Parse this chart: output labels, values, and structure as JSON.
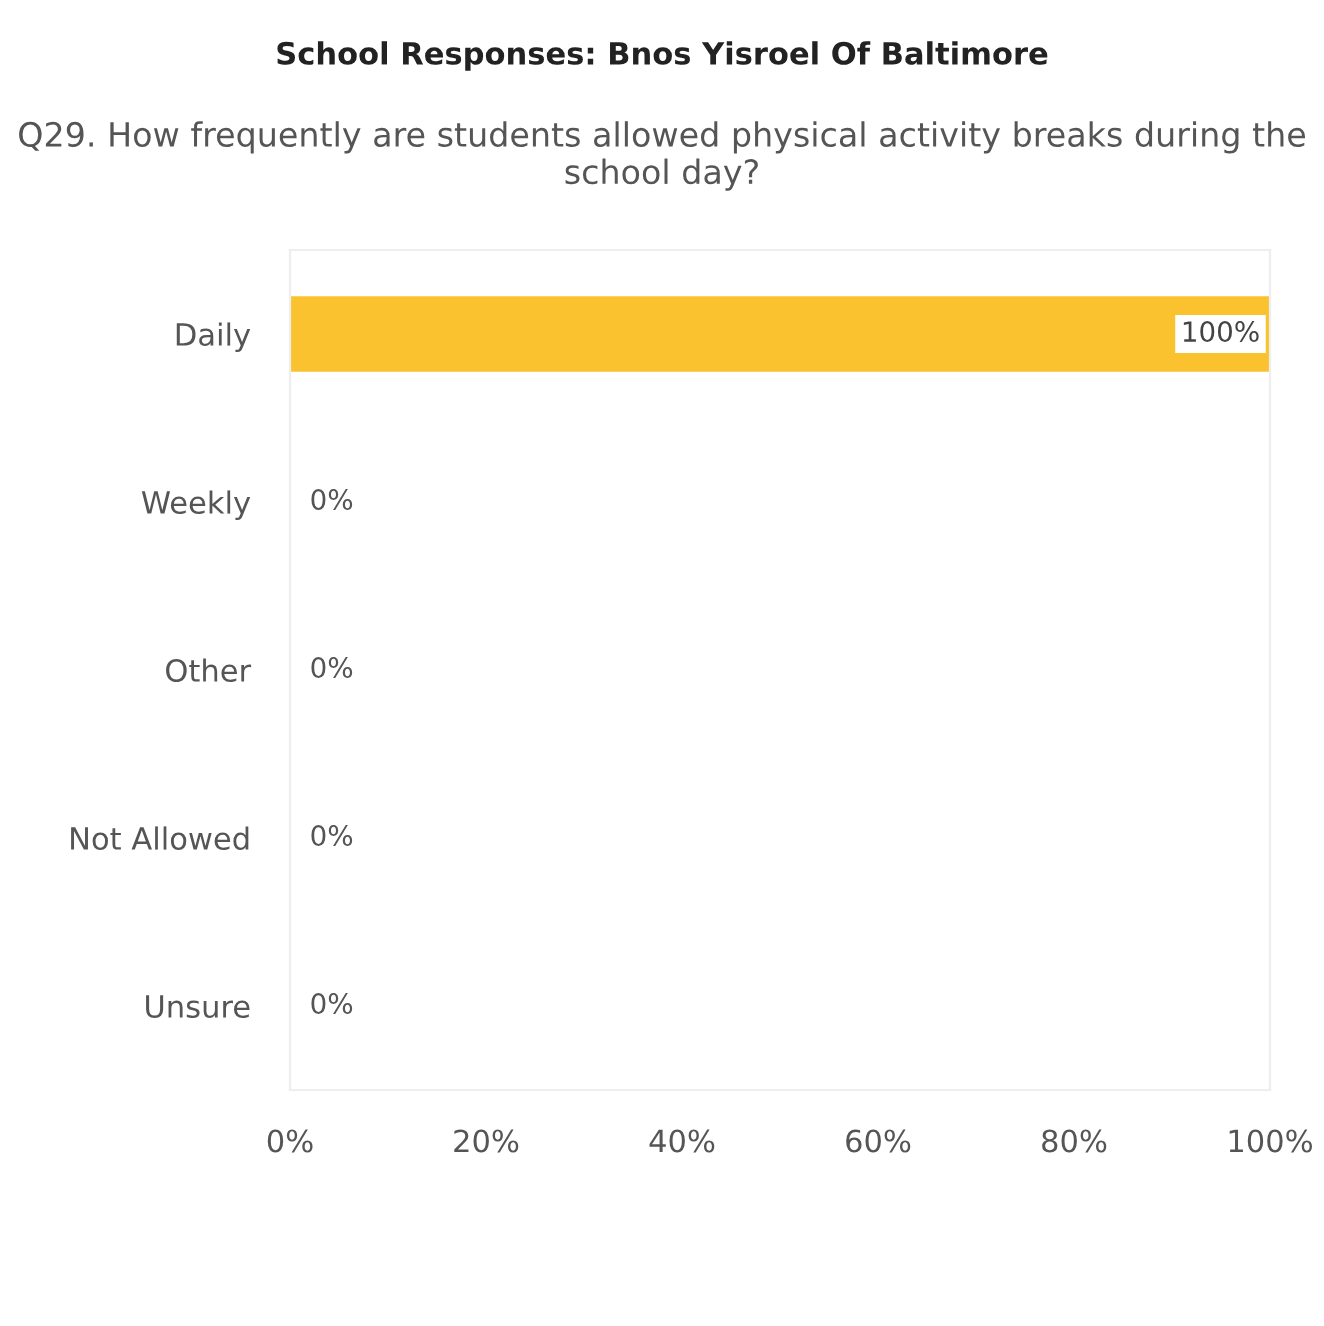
{
  "chart_data": {
    "type": "bar",
    "orientation": "horizontal",
    "title": "School Responses: Bnos Yisroel Of Baltimore",
    "subtitle": "Q29. How frequently are students allowed physical activity breaks during the school day?",
    "categories": [
      "Daily",
      "Weekly",
      "Other",
      "Not Allowed",
      "Unsure"
    ],
    "values": [
      100,
      0,
      0,
      0,
      0
    ],
    "value_labels": [
      "100%",
      "0%",
      "0%",
      "0%",
      "0%"
    ],
    "color": "#f9c22e",
    "xlim": [
      0,
      100
    ],
    "xticks": [
      {
        "value": 0,
        "label": "0%"
      },
      {
        "value": 20,
        "label": "20%"
      },
      {
        "value": 40,
        "label": "40%"
      },
      {
        "value": 60,
        "label": "60%"
      },
      {
        "value": 80,
        "label": "80%"
      },
      {
        "value": 100,
        "label": "100%"
      }
    ],
    "grid": false,
    "legend": false
  }
}
